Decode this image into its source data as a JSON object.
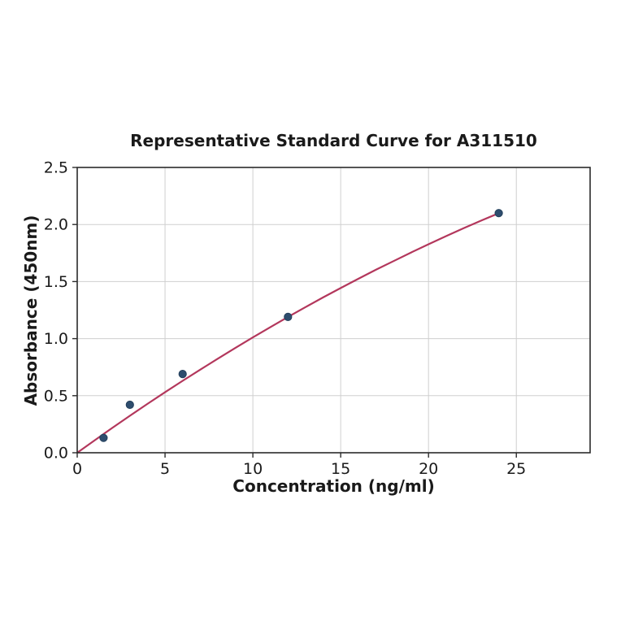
{
  "figure": {
    "background": "#ffffff"
  },
  "chart_data": {
    "type": "scatter",
    "title": "Representative Standard Curve for A311510",
    "xlabel": "Concentration (ng/ml)",
    "ylabel": "Absorbance (450nm)",
    "xlim": [
      0,
      29.2
    ],
    "ylim": [
      0,
      2.5
    ],
    "xticks": [
      0,
      5,
      10,
      15,
      20,
      25
    ],
    "xticklabels": [
      "0",
      "5",
      "10",
      "15",
      "20",
      "25"
    ],
    "yticks": [
      0,
      0.5,
      1.0,
      1.5,
      2.0,
      2.5
    ],
    "yticklabels": [
      "0.0",
      "0.5",
      "1.0",
      "1.5",
      "2.0",
      "2.5"
    ],
    "grid": true,
    "legend": "none",
    "points": {
      "name": "standard-points",
      "marker": "circle",
      "marker_color": "#2e4d6e",
      "marker_edge_color": "#24405c",
      "x": [
        1.5,
        3,
        6,
        12,
        24
      ],
      "y": [
        0.13,
        0.42,
        0.69,
        1.19,
        2.1
      ]
    },
    "fit_curve": {
      "name": "fitted-standard-curve",
      "color": "#b3375c",
      "x": [
        0,
        1,
        2,
        3,
        4,
        5,
        6,
        7,
        8,
        9,
        10,
        11,
        12,
        13,
        14,
        15,
        16,
        17,
        18,
        19,
        20,
        21,
        22,
        23,
        24
      ],
      "y": [
        0,
        0.11,
        0.218,
        0.324,
        0.428,
        0.53,
        0.63,
        0.728,
        0.824,
        0.918,
        1.011,
        1.101,
        1.19,
        1.276,
        1.361,
        1.443,
        1.524,
        1.603,
        1.679,
        1.754,
        1.827,
        1.898,
        1.967,
        2.034,
        2.099
      ]
    },
    "style": {
      "grid_color": "#cfcfcf",
      "spine_color": "#2b2b2b",
      "text_color": "#1a1a1a",
      "background": "#ffffff"
    }
  }
}
